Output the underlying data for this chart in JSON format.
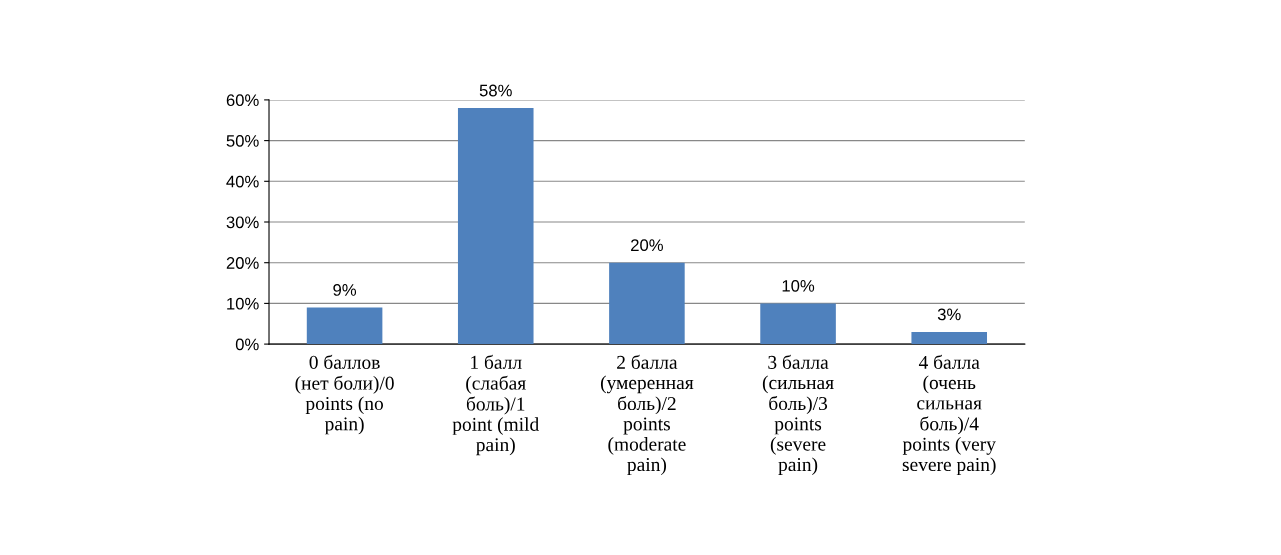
{
  "chart_data": {
    "type": "bar",
    "categories": [
      "0 баллов (нет боли)/0 points (no pain)",
      "1 балл (слабая боль)/1 point (mild pain)",
      "2 балла (умеренная боль)/2 points (moderate pain)",
      "3 балла (сильная боль)/3 points (severe pain)",
      "4 балла (очень сильная боль)/4 points (very severe pain)"
    ],
    "values": [
      9,
      58,
      20,
      10,
      3
    ],
    "value_labels": [
      "9%",
      "58%",
      "20%",
      "10%",
      "3%"
    ],
    "color": "#4f81bd",
    "ylim": [
      0,
      60
    ],
    "yticks": [
      {
        "value": 0,
        "label": "0%"
      },
      {
        "value": 10,
        "label": "10%"
      },
      {
        "value": 20,
        "label": "20%"
      },
      {
        "value": 30,
        "label": "30%"
      },
      {
        "value": 40,
        "label": "40%"
      },
      {
        "value": 50,
        "label": "50%"
      },
      {
        "value": 60,
        "label": "60%"
      }
    ],
    "grid": "y"
  }
}
